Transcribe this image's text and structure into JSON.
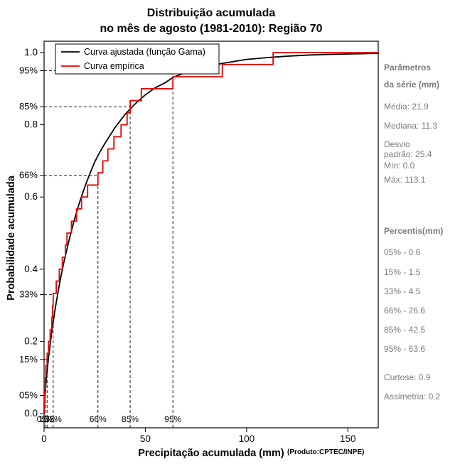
{
  "title": {
    "line1": "Distribuição acumulada",
    "line2": "no mês de agosto (1981-2010): Região 70"
  },
  "axes": {
    "xlabel": "Precipitação acumulada (mm)",
    "source_note": "(Produto:CPTEC/INPE)",
    "ylabel": "Probabilidade acumulada"
  },
  "side_panel": {
    "lines": [
      "Parâmetros",
      "da série (mm)",
      "Média: 21.9",
      "Mediana: 11.3",
      "Desvio",
      "padrão: 25.4",
      "Mín: 0.0",
      "Máx: 113.1",
      "Percentis(mm)",
      "05% - 0.6",
      "15% - 1.5",
      "33% - 4.5",
      "66% - 26.6",
      "85% - 42.5",
      "95% - 63.6",
      "Curtose: 0.9",
      "Assimetria: 0.2"
    ]
  },
  "chart_data": {
    "type": "line",
    "title": "Distribuição acumulada no mês de agosto (1981-2010): Região 70",
    "xlabel": "Precipitação acumulada (mm)",
    "ylabel": "Probabilidade acumulada",
    "xlim": [
      0,
      165
    ],
    "ylim": [
      0,
      1
    ],
    "x_ticks": [
      0,
      50,
      100,
      150
    ],
    "y_ticks": [
      0,
      0.2,
      0.4,
      0.6,
      0.8,
      1
    ],
    "grid": false,
    "legend_position": "top-left",
    "series": [
      {
        "name": "Curva ajustada (função Gama)",
        "color": "#000000",
        "style": "line",
        "points": [
          [
            0,
            0
          ],
          [
            0.3,
            0.038
          ],
          [
            0.6,
            0.06
          ],
          [
            1,
            0.09
          ],
          [
            1.5,
            0.117
          ],
          [
            2.2,
            0.155
          ],
          [
            3,
            0.191
          ],
          [
            3.7,
            0.222
          ],
          [
            4.5,
            0.253
          ],
          [
            5.5,
            0.291
          ],
          [
            7,
            0.34
          ],
          [
            8.5,
            0.385
          ],
          [
            10,
            0.425
          ],
          [
            12.5,
            0.484
          ],
          [
            15,
            0.538
          ],
          [
            17.5,
            0.585
          ],
          [
            20,
            0.626
          ],
          [
            22.5,
            0.663
          ],
          [
            25,
            0.697
          ],
          [
            27.5,
            0.724
          ],
          [
            30,
            0.748
          ],
          [
            35,
            0.792
          ],
          [
            40,
            0.829
          ],
          [
            45,
            0.858
          ],
          [
            50,
            0.883
          ],
          [
            55,
            0.903
          ],
          [
            60,
            0.917
          ],
          [
            63.6,
            0.931
          ],
          [
            70,
            0.945
          ],
          [
            80,
            0.962
          ],
          [
            90,
            0.972
          ],
          [
            100,
            0.981
          ],
          [
            110,
            0.986
          ],
          [
            120,
            0.99
          ],
          [
            130,
            0.993
          ],
          [
            140,
            0.995
          ],
          [
            150,
            0.996
          ],
          [
            165,
            0.998
          ]
        ]
      },
      {
        "name": "Curva empírica",
        "color": "#e60000",
        "style": "step",
        "points": [
          [
            0,
            0.033
          ],
          [
            0.3,
            0.067
          ],
          [
            0.6,
            0.1
          ],
          [
            0.9,
            0.133
          ],
          [
            1.5,
            0.167
          ],
          [
            2.2,
            0.2
          ],
          [
            3,
            0.233
          ],
          [
            3.8,
            0.267
          ],
          [
            4.2,
            0.3
          ],
          [
            4.5,
            0.333
          ],
          [
            6,
            0.367
          ],
          [
            7.5,
            0.4
          ],
          [
            9,
            0.433
          ],
          [
            10.5,
            0.467
          ],
          [
            11.3,
            0.5
          ],
          [
            13.5,
            0.533
          ],
          [
            16,
            0.567
          ],
          [
            18.5,
            0.6
          ],
          [
            21.5,
            0.633
          ],
          [
            26.6,
            0.667
          ],
          [
            29,
            0.7
          ],
          [
            31.5,
            0.733
          ],
          [
            34.5,
            0.767
          ],
          [
            38,
            0.8
          ],
          [
            41,
            0.833
          ],
          [
            42.5,
            0.867
          ],
          [
            48,
            0.9
          ],
          [
            63.6,
            0.933
          ],
          [
            88,
            0.967
          ],
          [
            113.1,
            1
          ]
        ]
      }
    ],
    "percentile_guides": [
      {
        "label": "05%",
        "x": 0.6,
        "p": 0.05
      },
      {
        "label": "15%",
        "x": 1.5,
        "p": 0.15
      },
      {
        "label": "33%",
        "x": 4.5,
        "p": 0.33
      },
      {
        "label": "66%",
        "x": 26.6,
        "p": 0.66
      },
      {
        "label": "85%",
        "x": 42.5,
        "p": 0.85
      },
      {
        "label": "95%",
        "x": 63.6,
        "p": 0.95
      }
    ],
    "stats": {
      "media": 21.9,
      "mediana": 11.3,
      "desvio_padrao": 25.4,
      "min": 0.0,
      "max": 113.1,
      "curtose": 0.9,
      "assimetria": 0.2,
      "percentis": {
        "05%": 0.6,
        "15%": 1.5,
        "33%": 4.5,
        "66%": 26.6,
        "85%": 42.5,
        "95%": 63.6
      }
    }
  }
}
